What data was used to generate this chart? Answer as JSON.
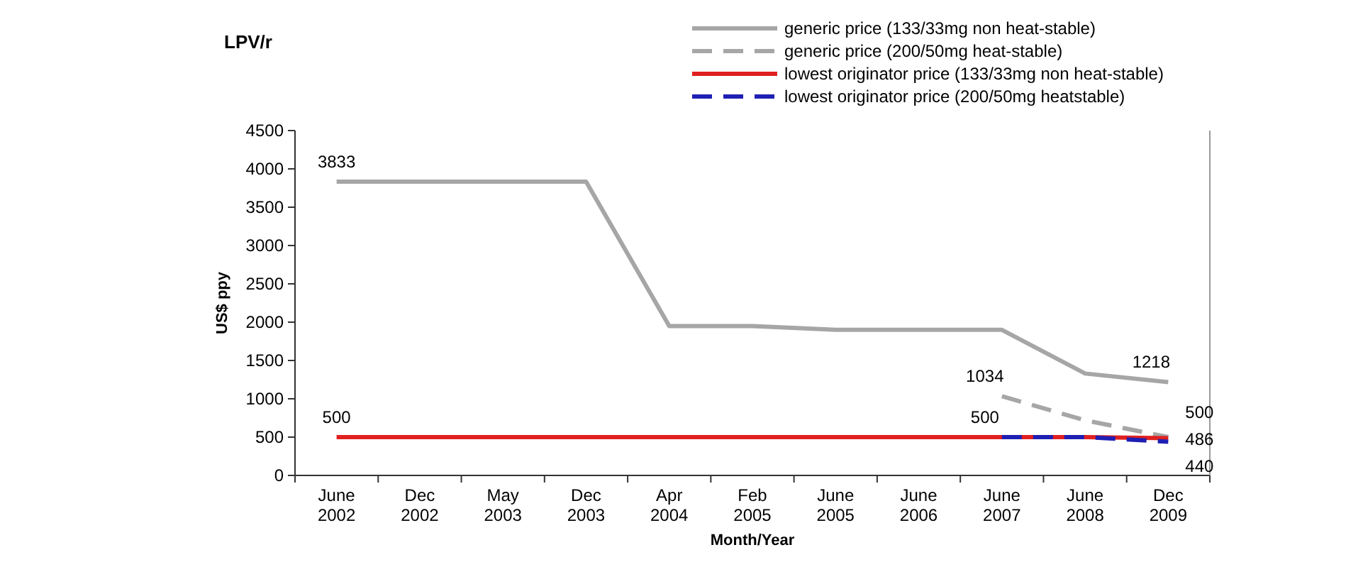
{
  "chart_data": {
    "type": "line",
    "title": "LPV/r",
    "xlabel": "Month/Year",
    "ylabel": "US$ ppy",
    "categories": [
      "June 2002",
      "Dec 2002",
      "May 2003",
      "Dec 2003",
      "Apr 2004",
      "Feb 2005",
      "June 2005",
      "June 2006",
      "June 2007",
      "June 2008",
      "Dec 2009"
    ],
    "ylim": [
      0,
      4500
    ],
    "yticks": [
      0,
      500,
      1000,
      1500,
      2000,
      2500,
      3000,
      3500,
      4000,
      4500
    ],
    "grid": false,
    "legend": "top right",
    "marker": "none",
    "series": [
      {
        "name": "generic price (133/33mg non heat-stable)",
        "color": "#a6a6a6",
        "line_style": "solid",
        "values": [
          3833,
          3833,
          3833,
          3833,
          1950,
          1950,
          1900,
          1900,
          1900,
          1330,
          1218
        ],
        "value_labels": [
          "3833",
          null,
          null,
          null,
          null,
          null,
          null,
          null,
          null,
          null,
          "1218"
        ]
      },
      {
        "name": "generic price (200/50mg heat-stable)",
        "color": "#a6a6a6",
        "line_style": "dashed",
        "values": [
          null,
          null,
          null,
          null,
          null,
          null,
          null,
          null,
          1034,
          720,
          500
        ],
        "value_labels": [
          null,
          null,
          null,
          null,
          null,
          null,
          null,
          null,
          "1034",
          null,
          "500"
        ]
      },
      {
        "name": "lowest originator price (133/33mg non heat-stable)",
        "color": "#e02020",
        "line_style": "solid",
        "values": [
          500,
          500,
          500,
          500,
          500,
          500,
          500,
          500,
          500,
          500,
          486
        ],
        "value_labels": [
          "500",
          null,
          null,
          null,
          null,
          null,
          null,
          null,
          "500",
          null,
          "486"
        ]
      },
      {
        "name": "lowest originator price (200/50mg heatstable)",
        "color": "#1f1fb4",
        "line_style": "dashed",
        "values": [
          null,
          null,
          null,
          null,
          null,
          null,
          null,
          null,
          500,
          500,
          440
        ],
        "value_labels": [
          null,
          null,
          null,
          null,
          null,
          null,
          null,
          null,
          null,
          null,
          "440"
        ]
      }
    ]
  }
}
